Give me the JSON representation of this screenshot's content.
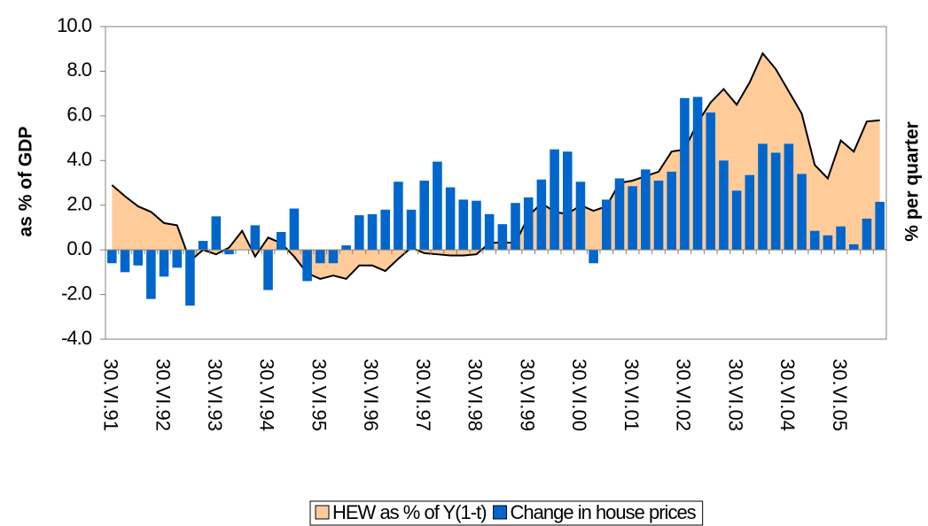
{
  "chart_data": {
    "type": "bar",
    "y_label": "as % of GDP",
    "y2_label": "% per quarter",
    "categories": [
      "30.VI.91",
      null,
      null,
      null,
      "30.VI.92",
      null,
      null,
      null,
      "30.VI.93",
      null,
      null,
      null,
      "30.VI.94",
      null,
      null,
      null,
      "30.VI.95",
      null,
      null,
      null,
      "30.VI.96",
      null,
      null,
      null,
      "30.VI.97",
      null,
      null,
      null,
      "30.VI.98",
      null,
      null,
      null,
      "30.VI.99",
      null,
      null,
      null,
      "30.VI.00",
      null,
      null,
      null,
      "30.VI.01",
      null,
      null,
      null,
      "30.VI.02",
      null,
      null,
      null,
      "30.VI.03",
      null,
      null,
      null,
      "30.VI.04",
      null,
      null,
      null,
      "30.VI.05",
      null,
      null,
      null
    ],
    "series": [
      {
        "name": "HEW as % of Y(1-t)",
        "type": "area",
        "color": "#ffcc99",
        "values": [
          2.9,
          2.4,
          1.95,
          1.7,
          1.2,
          1.1,
          -0.5,
          0.0,
          -0.2,
          0.1,
          0.85,
          -0.3,
          0.55,
          0.3,
          -0.3,
          -1.05,
          -1.3,
          -1.15,
          -1.3,
          -0.7,
          -0.7,
          -0.95,
          -0.4,
          0.1,
          -0.15,
          -0.2,
          -0.25,
          -0.25,
          -0.2,
          0.3,
          0.35,
          0.3,
          1.5,
          2.1,
          1.7,
          1.6,
          2.0,
          1.75,
          1.95,
          3.0,
          3.1,
          3.3,
          3.5,
          4.4,
          4.5,
          5.7,
          6.6,
          7.2,
          6.5,
          7.5,
          8.8,
          8.1,
          7.1,
          6.1,
          3.8,
          3.2,
          4.9,
          4.4,
          5.75,
          5.8
        ]
      },
      {
        "name": "Change in house prices",
        "type": "bar",
        "color": "#0066cc",
        "values": [
          -0.6,
          -1.0,
          -0.7,
          -2.2,
          -1.2,
          -0.8,
          -2.5,
          0.4,
          1.5,
          -0.2,
          0.0,
          1.1,
          -1.8,
          0.8,
          1.85,
          -1.4,
          -0.6,
          -0.6,
          0.2,
          1.55,
          1.6,
          1.8,
          3.05,
          1.8,
          3.1,
          3.95,
          2.8,
          2.25,
          2.2,
          1.6,
          1.15,
          2.1,
          2.35,
          3.15,
          4.5,
          4.4,
          3.05,
          -0.6,
          2.25,
          3.2,
          2.85,
          3.6,
          3.1,
          3.5,
          6.8,
          6.85,
          6.15,
          4.0,
          2.65,
          3.35,
          4.75,
          4.35,
          4.75,
          3.4,
          0.85,
          0.65,
          1.05,
          0.25,
          1.4,
          2.15
        ]
      }
    ],
    "ylim": [
      -4,
      10
    ],
    "yticks": [
      {
        "value": -4,
        "label": "-4.0"
      },
      {
        "value": -2,
        "label": "-2.0"
      },
      {
        "value": 0,
        "label": "0.0"
      },
      {
        "value": 2,
        "label": "2.0"
      },
      {
        "value": 4,
        "label": "4.0"
      },
      {
        "value": 6,
        "label": "6.0"
      },
      {
        "value": 8,
        "label": "8.0"
      },
      {
        "value": 10,
        "label": "10.0"
      }
    ],
    "legend": "bottom"
  }
}
